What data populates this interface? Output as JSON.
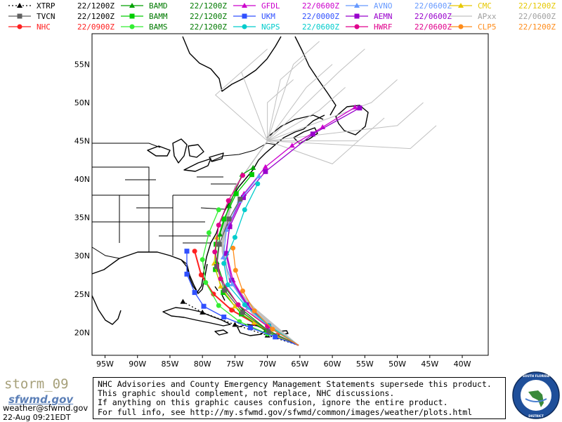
{
  "legend": [
    {
      "name": "XTRP",
      "time": "22/1200Z",
      "color": "#000000",
      "marker": "triangle",
      "dotted": true
    },
    {
      "name": "BAMD",
      "time": "22/1200Z",
      "color": "#00a000",
      "marker": "triangle",
      "dotted": false
    },
    {
      "name": "GFDL",
      "time": "22/0600Z",
      "color": "#cc00cc",
      "marker": "triangle",
      "dotted": false
    },
    {
      "name": "AVNO",
      "time": "22/0600Z",
      "color": "#6699ff",
      "marker": "triangle",
      "dotted": false
    },
    {
      "name": "CMC",
      "time": "22/1200Z",
      "color": "#e6c800",
      "marker": "triangle",
      "dotted": false
    },
    {
      "name": "TVCN",
      "time": "22/1200Z",
      "color": "#606060",
      "marker": "square",
      "dotted": false
    },
    {
      "name": "BAMM",
      "time": "22/1200Z",
      "color": "#00cc00",
      "marker": "square",
      "dotted": false
    },
    {
      "name": "UKM",
      "time": "22/0000Z",
      "color": "#3050ff",
      "marker": "square",
      "dotted": false
    },
    {
      "name": "AEMN",
      "time": "22/0600Z",
      "color": "#9900cc",
      "marker": "square",
      "dotted": false
    },
    {
      "name": "APxx",
      "time": "22/0600Z",
      "color": "#c0c0c0",
      "marker": "none",
      "dotted": false
    },
    {
      "name": "NHC",
      "time": "22/0900Z",
      "color": "#ff2020",
      "marker": "circle",
      "dotted": false
    },
    {
      "name": "BAMS",
      "time": "22/1200Z",
      "color": "#33ee33",
      "marker": "circle",
      "dotted": false
    },
    {
      "name": "NGPS",
      "time": "22/0600Z",
      "color": "#00cccc",
      "marker": "circle",
      "dotted": false
    },
    {
      "name": "HWRF",
      "time": "22/0600Z",
      "color": "#e0008c",
      "marker": "circle",
      "dotted": false
    },
    {
      "name": "CLP5",
      "time": "22/1200Z",
      "color": "#ff8c1a",
      "marker": "circle",
      "dotted": false
    }
  ],
  "axes": {
    "lon_labels": [
      "95W",
      "90W",
      "85W",
      "80W",
      "75W",
      "70W",
      "65W",
      "60W",
      "55W",
      "50W",
      "45W",
      "40W"
    ],
    "lat_labels": [
      "55N",
      "50N",
      "45N",
      "40N",
      "35N",
      "30N",
      "25N",
      "20N"
    ]
  },
  "map_data": {
    "type": "storm-track-map",
    "lon_range": [
      -97,
      -36
    ],
    "lat_range": [
      17,
      59
    ],
    "start": [
      -65.2,
      18.3
    ],
    "tracks": [
      {
        "model": "NHC",
        "points": [
          [
            -65.2,
            18.3
          ],
          [
            -68.5,
            19.6
          ],
          [
            -72,
            21.2
          ],
          [
            -75.5,
            22.9
          ],
          [
            -78.3,
            25.0
          ],
          [
            -80.2,
            27.5
          ],
          [
            -81.2,
            30.6
          ]
        ]
      },
      {
        "model": "XTRP",
        "points": [
          [
            -65.2,
            18.3
          ],
          [
            -70,
            19.6
          ],
          [
            -75,
            21.0
          ],
          [
            -80,
            22.6
          ],
          [
            -83,
            24.0
          ]
        ]
      },
      {
        "model": "BAMD",
        "points": [
          [
            -65.2,
            18.3
          ],
          [
            -70,
            20.3
          ],
          [
            -73.8,
            22.9
          ],
          [
            -76.5,
            25.8
          ],
          [
            -77.8,
            29.2
          ],
          [
            -77.3,
            32.8
          ],
          [
            -75.9,
            36.5
          ],
          [
            -73.9,
            40.6
          ],
          [
            -72.2,
            41.5
          ]
        ]
      },
      {
        "model": "BAMM",
        "points": [
          [
            -65.2,
            18.3
          ],
          [
            -70,
            20.0
          ],
          [
            -74.0,
            22.4
          ],
          [
            -76.8,
            25.2
          ],
          [
            -78.0,
            28.2
          ],
          [
            -77.9,
            31.5
          ],
          [
            -76.7,
            34.8
          ],
          [
            -74.8,
            38.1
          ],
          [
            -72.4,
            40.6
          ]
        ]
      },
      {
        "model": "BAMS",
        "points": [
          [
            -65.2,
            18.3
          ],
          [
            -70,
            19.8
          ],
          [
            -74.3,
            21.4
          ],
          [
            -77.5,
            23.5
          ],
          [
            -79.5,
            26.5
          ],
          [
            -80.0,
            29.5
          ],
          [
            -79.0,
            33.0
          ],
          [
            -77.5,
            36.0
          ]
        ]
      },
      {
        "model": "GFDL",
        "points": [
          [
            -65.2,
            18.3
          ],
          [
            -69.5,
            20.6
          ],
          [
            -73.0,
            23.5
          ],
          [
            -75.3,
            26.8
          ],
          [
            -76.3,
            30.4
          ],
          [
            -75.8,
            34.2
          ],
          [
            -73.6,
            38.1
          ],
          [
            -70.3,
            41.6
          ],
          [
            -66.2,
            44.4
          ],
          [
            -61.5,
            46.8
          ],
          [
            -56.5,
            49.4
          ]
        ]
      },
      {
        "model": "AEMN",
        "points": [
          [
            -65.2,
            18.3
          ],
          [
            -69.8,
            20.8
          ],
          [
            -73.2,
            23.6
          ],
          [
            -75.5,
            26.8
          ],
          [
            -76.4,
            30.3
          ],
          [
            -75.8,
            33.8
          ],
          [
            -73.7,
            37.6
          ],
          [
            -70.3,
            41.0
          ],
          [
            -63,
            45.9
          ],
          [
            -55.8,
            49.3
          ]
        ]
      },
      {
        "model": "AVNO",
        "points": [
          [
            -65.2,
            18.3
          ],
          [
            -69.5,
            20.5
          ],
          [
            -73.0,
            23.2
          ],
          [
            -75.4,
            26.3
          ],
          [
            -76.8,
            29.8
          ],
          [
            -76.3,
            33.4
          ],
          [
            -74.3,
            37.2
          ],
          [
            -71.3,
            40.4
          ]
        ]
      },
      {
        "model": "CMC",
        "points": [
          [
            -65.2,
            18.3
          ],
          [
            -68.5,
            19.5
          ],
          [
            -72.0,
            21.3
          ],
          [
            -75.0,
            23.4
          ],
          [
            -77.2,
            26.0
          ],
          [
            -78.2,
            29.0
          ],
          [
            -77.8,
            32.4
          ]
        ]
      },
      {
        "model": "TVCN",
        "points": [
          [
            -65.2,
            18.3
          ],
          [
            -69.8,
            20.1
          ],
          [
            -73.8,
            22.6
          ],
          [
            -76.6,
            25.5
          ],
          [
            -77.8,
            28.6
          ],
          [
            -77.4,
            31.5
          ],
          [
            -75.9,
            34.8
          ],
          [
            -74.2,
            37.4
          ]
        ]
      },
      {
        "model": "UKM",
        "points": [
          [
            -65.2,
            18.3
          ],
          [
            -68.8,
            19.4
          ],
          [
            -72.6,
            20.6
          ],
          [
            -76.7,
            22.0
          ],
          [
            -79.8,
            23.4
          ],
          [
            -81.2,
            25.2
          ],
          [
            -82.4,
            27.6
          ],
          [
            -82.4,
            30.6
          ]
        ]
      },
      {
        "model": "NGPS",
        "points": [
          [
            -65.2,
            18.3
          ],
          [
            -69.8,
            20.9
          ],
          [
            -73.5,
            23.6
          ],
          [
            -76.1,
            26.2
          ],
          [
            -76.7,
            29.0
          ],
          [
            -75.0,
            32.4
          ],
          [
            -73.5,
            36.0
          ],
          [
            -71.5,
            39.4
          ]
        ]
      },
      {
        "model": "HWRF",
        "points": [
          [
            -65.2,
            18.3
          ],
          [
            -70,
            20.8
          ],
          [
            -74.5,
            23.6
          ],
          [
            -77.2,
            27.0
          ],
          [
            -78.1,
            30.5
          ],
          [
            -77.5,
            34.0
          ],
          [
            -76.0,
            37.2
          ],
          [
            -73.8,
            40.5
          ]
        ]
      },
      {
        "model": "CLP5",
        "points": [
          [
            -65.2,
            18.3
          ],
          [
            -69.2,
            20.4
          ],
          [
            -72.0,
            22.8
          ],
          [
            -73.8,
            25.4
          ],
          [
            -74.9,
            28.1
          ],
          [
            -75.3,
            31.0
          ]
        ]
      }
    ]
  },
  "footer": {
    "brand_title": "storm_09",
    "brand_logo": "sfwmd.gov",
    "email": "weather@sfwmd.gov",
    "date": "22-Aug 09:21EDT",
    "disclaimer": [
      "NHC Advisories and County Emergency Management Statements supersede this product.",
      "This graphic should complement, not replace, NHC discussions.",
      "If anything on this graphic causes confusion, ignore the entire product.",
      "For full info, see  http://my.sfwmd.gov/sfwmd/common/images/weather/plots.html"
    ],
    "seal_text": "SOUTH FLORIDA WATER MANAGEMENT DISTRICT"
  }
}
